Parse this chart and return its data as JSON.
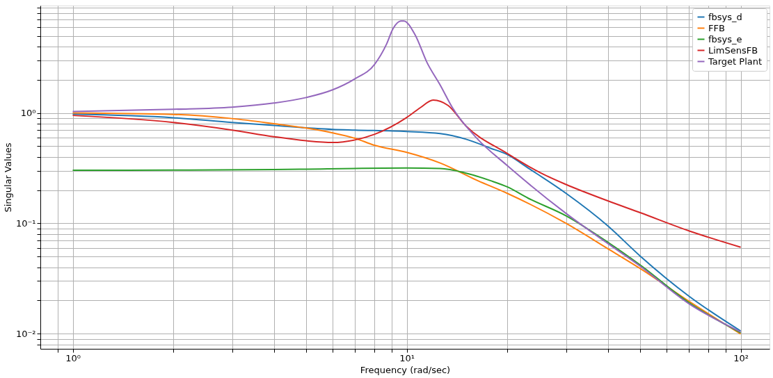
{
  "chart_data": {
    "type": "line",
    "xlabel": "Frequency (rad/sec)",
    "ylabel": "Singular Values",
    "log": "xy",
    "grid": true,
    "legend": "top right",
    "line_style": "solid",
    "marker": "none",
    "xlim": [
      0.8,
      122
    ],
    "ylim": [
      0.0073,
      9.4
    ],
    "xticks": [
      {
        "value": 0.9,
        "label": null
      },
      {
        "value": 1,
        "label": "10⁰"
      },
      {
        "value": 2,
        "label": null
      },
      {
        "value": 3,
        "label": null
      },
      {
        "value": 4,
        "label": null
      },
      {
        "value": 5,
        "label": null
      },
      {
        "value": 6,
        "label": null
      },
      {
        "value": 7,
        "label": null
      },
      {
        "value": 8,
        "label": null
      },
      {
        "value": 9,
        "label": null
      },
      {
        "value": 10,
        "label": "10¹"
      },
      {
        "value": 20,
        "label": null
      },
      {
        "value": 30,
        "label": null
      },
      {
        "value": 40,
        "label": null
      },
      {
        "value": 50,
        "label": null
      },
      {
        "value": 60,
        "label": null
      },
      {
        "value": 70,
        "label": null
      },
      {
        "value": 80,
        "label": null
      },
      {
        "value": 90,
        "label": null
      },
      {
        "value": 100,
        "label": "10²"
      }
    ],
    "yticks": [
      {
        "value": 0.008,
        "label": null
      },
      {
        "value": 0.009,
        "label": null
      },
      {
        "value": 0.01,
        "label": "10⁻²"
      },
      {
        "value": 0.02,
        "label": null
      },
      {
        "value": 0.03,
        "label": null
      },
      {
        "value": 0.04,
        "label": null
      },
      {
        "value": 0.05,
        "label": null
      },
      {
        "value": 0.06,
        "label": null
      },
      {
        "value": 0.07,
        "label": null
      },
      {
        "value": 0.08,
        "label": null
      },
      {
        "value": 0.09,
        "label": null
      },
      {
        "value": 0.1,
        "label": "10⁻¹"
      },
      {
        "value": 0.2,
        "label": null
      },
      {
        "value": 0.3,
        "label": null
      },
      {
        "value": 0.4,
        "label": null
      },
      {
        "value": 0.5,
        "label": null
      },
      {
        "value": 0.6,
        "label": null
      },
      {
        "value": 0.7,
        "label": null
      },
      {
        "value": 0.8,
        "label": null
      },
      {
        "value": 0.9,
        "label": null
      },
      {
        "value": 1,
        "label": "10⁰"
      },
      {
        "value": 2,
        "label": null
      },
      {
        "value": 3,
        "label": null
      },
      {
        "value": 4,
        "label": null
      },
      {
        "value": 5,
        "label": null
      },
      {
        "value": 6,
        "label": null
      },
      {
        "value": 7,
        "label": null
      },
      {
        "value": 8,
        "label": null
      },
      {
        "value": 9,
        "label": null
      }
    ],
    "series": [
      {
        "name": "fbsys_d",
        "color": "#1f77b4",
        "x": [
          1,
          2,
          3,
          4,
          6,
          7,
          10,
          12.6,
          15,
          17.8,
          20,
          23.1,
          30,
          40,
          50,
          70,
          100
        ],
        "values": [
          0.975,
          0.906,
          0.82,
          0.77,
          0.71,
          0.7,
          0.68,
          0.65,
          0.58,
          0.48,
          0.42,
          0.317,
          0.187,
          0.095,
          0.0506,
          0.0219,
          0.0106
        ]
      },
      {
        "name": "FFB",
        "color": "#ff7f0e",
        "x": [
          1,
          2,
          3,
          4,
          5,
          6,
          7,
          8,
          10,
          12.6,
          16.3,
          20,
          30,
          40,
          50,
          70,
          100
        ],
        "values": [
          1.0,
          0.97,
          0.89,
          0.8,
          0.73,
          0.66,
          0.59,
          0.51,
          0.44,
          0.352,
          0.244,
          0.187,
          0.1,
          0.059,
          0.039,
          0.0197,
          0.00995
        ]
      },
      {
        "name": "fbsys_e",
        "color": "#2ca02c",
        "x": [
          1,
          2,
          4,
          5,
          10,
          12.6,
          15,
          17.8,
          20,
          23.1,
          30,
          40,
          50,
          70,
          100
        ],
        "values": [
          0.303,
          0.304,
          0.307,
          0.31,
          0.317,
          0.314,
          0.286,
          0.244,
          0.214,
          0.169,
          0.117,
          0.0675,
          0.042,
          0.0191,
          0.0102
        ]
      },
      {
        "name": "LimSensFB",
        "color": "#d62728",
        "x": [
          1,
          2,
          3,
          4,
          5,
          6,
          7,
          8,
          10,
          11,
          12,
          13.3,
          15,
          20,
          25.2,
          30,
          40,
          50,
          70,
          100
        ],
        "values": [
          0.95,
          0.82,
          0.7,
          0.61,
          0.56,
          0.54,
          0.57,
          0.64,
          0.91,
          1.12,
          1.31,
          1.17,
          0.77,
          0.43,
          0.286,
          0.225,
          0.16,
          0.125,
          0.0855,
          0.0608
        ]
      },
      {
        "name": "Target Plant",
        "color": "#9467bd",
        "x": [
          1,
          2,
          3,
          4,
          5,
          6,
          7,
          8,
          8.7,
          9.1,
          9.6,
          9.8,
          10.6,
          11.5,
          12.6,
          13.7,
          16.3,
          20,
          30,
          40,
          50,
          70,
          100
        ],
        "values": [
          1.03,
          1.08,
          1.13,
          1.23,
          1.38,
          1.62,
          2.04,
          2.74,
          4.2,
          5.8,
          6.8,
          6.82,
          5.1,
          2.87,
          1.79,
          1.12,
          0.58,
          0.334,
          0.123,
          0.0657,
          0.041,
          0.0187,
          0.0104
        ]
      }
    ]
  }
}
